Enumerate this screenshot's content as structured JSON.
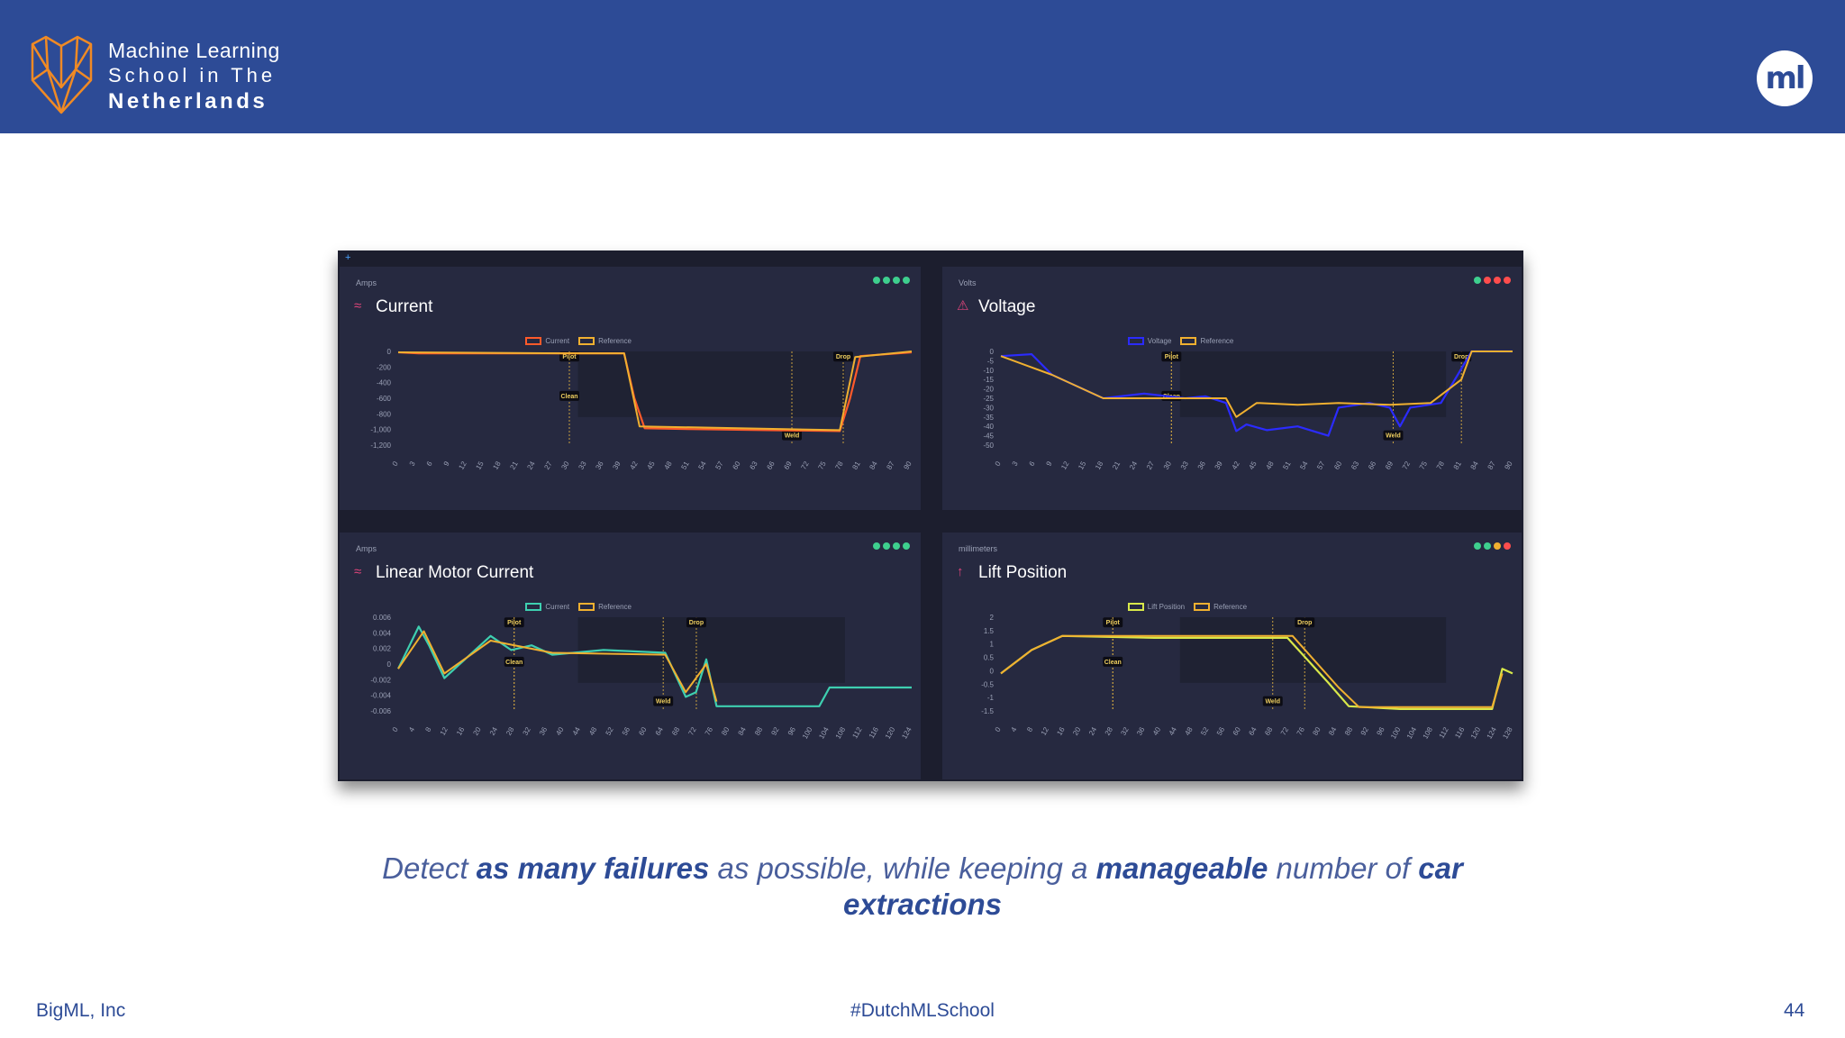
{
  "header": {
    "logo_line1": "Machine Learning",
    "logo_line2": "School in The",
    "logo_line3": "Netherlands",
    "badge": "ml",
    "bg_color": "#2d4b96",
    "logo_color": "#f08a24"
  },
  "panels": [
    {
      "unit": "Amps",
      "title": "Current",
      "icon": "wave-icon",
      "legend": [
        "Current",
        "Reference"
      ],
      "series_colors": [
        "#ff5a2a",
        "#f0b030"
      ],
      "dots": [
        "#3ecf8e",
        "#3ecf8e",
        "#3ecf8e",
        "#3ecf8e"
      ],
      "yticks": [
        "0",
        "-200",
        "-400",
        "-600",
        "-800",
        "-1,000",
        "-1,200"
      ],
      "xticks": [
        "0",
        "3",
        "6",
        "9",
        "12",
        "15",
        "18",
        "21",
        "24",
        "27",
        "30",
        "33",
        "36",
        "39",
        "42",
        "45",
        "48",
        "51",
        "54",
        "57",
        "60",
        "63",
        "66",
        "69",
        "72",
        "75",
        "78",
        "81",
        "84",
        "87",
        "90"
      ],
      "markers": [
        {
          "label": "Pilot",
          "x": 30
        },
        {
          "label": "Clean",
          "x": 30
        },
        {
          "label": "Weld",
          "x": 69
        },
        {
          "label": "Drop",
          "x": 78
        }
      ]
    },
    {
      "unit": "Volts",
      "title": "Voltage",
      "icon": "warning-icon",
      "legend": [
        "Voltage",
        "Reference"
      ],
      "series_colors": [
        "#2b2bff",
        "#f0b030"
      ],
      "dots": [
        "#3ecf8e",
        "#ff4d4d",
        "#ff4d4d",
        "#ff4d4d"
      ],
      "yticks": [
        "0",
        "-5",
        "-10",
        "-15",
        "-20",
        "-25",
        "-30",
        "-35",
        "-40",
        "-45",
        "-50"
      ],
      "xticks": [
        "0",
        "3",
        "6",
        "9",
        "12",
        "15",
        "18",
        "21",
        "24",
        "27",
        "30",
        "33",
        "36",
        "39",
        "42",
        "45",
        "48",
        "51",
        "54",
        "57",
        "60",
        "63",
        "66",
        "69",
        "72",
        "75",
        "78",
        "81",
        "84",
        "87",
        "90"
      ],
      "markers": [
        {
          "label": "Pilot",
          "x": 30
        },
        {
          "label": "Clean",
          "x": 30
        },
        {
          "label": "Weld",
          "x": 69
        },
        {
          "label": "Drop",
          "x": 81
        }
      ]
    },
    {
      "unit": "Amps",
      "title": "Linear Motor Current",
      "icon": "wave-icon",
      "legend": [
        "Current",
        "Reference"
      ],
      "series_colors": [
        "#3ecfb0",
        "#f0b030"
      ],
      "dots": [
        "#3ecf8e",
        "#3ecf8e",
        "#3ecf8e",
        "#3ecf8e"
      ],
      "yticks": [
        "0.006",
        "0.004",
        "0.002",
        "0",
        "-0.002",
        "-0.004",
        "-0.006"
      ],
      "xticks": [
        "0",
        "4",
        "8",
        "12",
        "16",
        "20",
        "24",
        "28",
        "32",
        "36",
        "40",
        "44",
        "48",
        "52",
        "56",
        "60",
        "64",
        "68",
        "72",
        "76",
        "80",
        "84",
        "88",
        "92",
        "96",
        "100",
        "104",
        "108",
        "112",
        "116",
        "120",
        "124"
      ],
      "markers": [
        {
          "label": "Pilot",
          "x": 28
        },
        {
          "label": "Clean",
          "x": 28
        },
        {
          "label": "Weld",
          "x": 64
        },
        {
          "label": "Drop",
          "x": 72
        }
      ]
    },
    {
      "unit": "millimeters",
      "title": "Lift Position",
      "icon": "lift-icon",
      "legend": [
        "Lift Position",
        "Reference"
      ],
      "series_colors": [
        "#d8e84a",
        "#f0b030"
      ],
      "dots": [
        "#3ecf8e",
        "#3ecf8e",
        "#f0b030",
        "#ff4d4d"
      ],
      "yticks": [
        "2",
        "1.5",
        "1",
        "0.5",
        "0",
        "-0.5",
        "-1",
        "-1.5"
      ],
      "xticks": [
        "0",
        "4",
        "8",
        "12",
        "16",
        "20",
        "24",
        "28",
        "32",
        "36",
        "40",
        "44",
        "48",
        "52",
        "56",
        "60",
        "64",
        "68",
        "72",
        "76",
        "80",
        "84",
        "88",
        "92",
        "96",
        "100",
        "104",
        "108",
        "112",
        "116",
        "120",
        "124",
        "128"
      ],
      "markers": [
        {
          "label": "Pilot",
          "x": 28
        },
        {
          "label": "Clean",
          "x": 28
        },
        {
          "label": "Weld",
          "x": 68
        },
        {
          "label": "Drop",
          "x": 76
        }
      ]
    }
  ],
  "caption": {
    "p1": "Detect ",
    "p2": "as many failures",
    "p3": " as possible, while keeping a ",
    "p4": "manageable",
    "p5": " number of ",
    "p6": "car extractions"
  },
  "footer": {
    "left": "BigML, Inc",
    "center": "#DutchMLSchool",
    "page": "44"
  }
}
